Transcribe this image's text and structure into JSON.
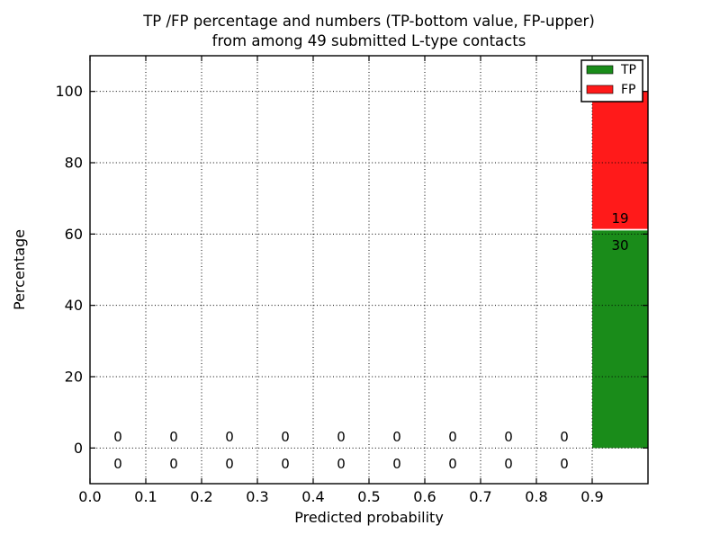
{
  "chart_data": {
    "type": "bar",
    "stacked": true,
    "title_lines": [
      "TP /FP percentage and numbers (TP-bottom value, FP-upper)",
      "from among 49 submitted L-type contacts"
    ],
    "xlabel": "Predicted probability",
    "ylabel": "Percentage",
    "total_contacts": 49,
    "xlim": [
      0.0,
      1.0
    ],
    "ylim": [
      -10,
      110
    ],
    "xtick_values": [
      0.0,
      0.1,
      0.2,
      0.3,
      0.4,
      0.5,
      0.6,
      0.7,
      0.8,
      0.9
    ],
    "xtick_labels": [
      "0.0",
      "0.1",
      "0.2",
      "0.3",
      "0.4",
      "0.5",
      "0.6",
      "0.7",
      "0.8",
      "0.9"
    ],
    "ytick_values": [
      0,
      20,
      40,
      60,
      80,
      100
    ],
    "ytick_labels": [
      "0",
      "20",
      "40",
      "60",
      "80",
      "100"
    ],
    "bin_edges": [
      0.0,
      0.1,
      0.2,
      0.3,
      0.4,
      0.5,
      0.6,
      0.7,
      0.8,
      0.9,
      1.0
    ],
    "series": [
      {
        "name": "TP",
        "color": "#1a8c1a",
        "counts": [
          0,
          0,
          0,
          0,
          0,
          0,
          0,
          0,
          0,
          30
        ]
      },
      {
        "name": "FP",
        "color": "#ff1a1a",
        "counts": [
          0,
          0,
          0,
          0,
          0,
          0,
          0,
          0,
          0,
          19
        ]
      }
    ],
    "legend": {
      "position": "upper right",
      "entries": [
        {
          "label": "TP",
          "color": "#1a8c1a"
        },
        {
          "label": "FP",
          "color": "#ff1a1a"
        }
      ]
    },
    "grid": {
      "show": true,
      "style": "dotted",
      "color": "#000000"
    },
    "axis_color": "#000000",
    "text_color": "#000000",
    "background_color": "#ffffff",
    "bar_seam_color": "#ffffff"
  }
}
